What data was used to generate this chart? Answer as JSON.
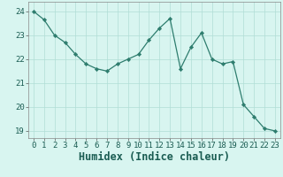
{
  "x": [
    0,
    1,
    2,
    3,
    4,
    5,
    6,
    7,
    8,
    9,
    10,
    11,
    12,
    13,
    14,
    15,
    16,
    17,
    18,
    19,
    20,
    21,
    22,
    23
  ],
  "y": [
    24.0,
    23.65,
    23.0,
    22.7,
    22.2,
    21.8,
    21.6,
    21.5,
    21.8,
    22.0,
    22.2,
    22.8,
    23.3,
    23.7,
    21.6,
    22.5,
    23.1,
    22.0,
    21.8,
    21.9,
    20.1,
    19.6,
    19.1,
    19.0
  ],
  "xlabel": "Humidex (Indice chaleur)",
  "line_color": "#2e7d6e",
  "marker_color": "#2e7d6e",
  "bg_color": "#d8f5f0",
  "grid_color": "#b0ddd6",
  "xlim": [
    -0.5,
    23.5
  ],
  "ylim": [
    18.7,
    24.4
  ],
  "yticks": [
    19,
    20,
    21,
    22,
    23,
    24
  ],
  "xticks": [
    0,
    1,
    2,
    3,
    4,
    5,
    6,
    7,
    8,
    9,
    10,
    11,
    12,
    13,
    14,
    15,
    16,
    17,
    18,
    19,
    20,
    21,
    22,
    23
  ],
  "tick_fontsize": 6.5,
  "xlabel_fontsize": 8.5
}
